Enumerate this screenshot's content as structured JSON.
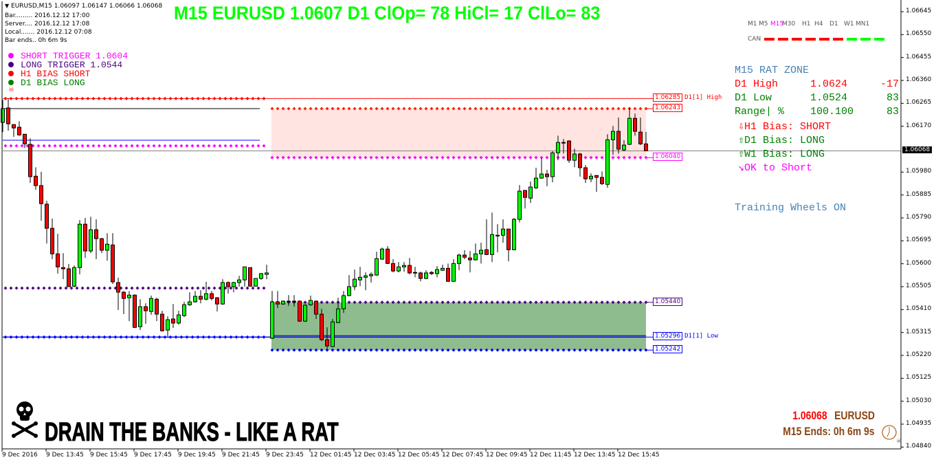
{
  "header": {
    "symbol_line": "EURUSD,M15  1.06097 1.06147 1.06066 1.06068",
    "info_lines": [
      "Bar......... 2016.12.12 17:00",
      "Server.... 2016.12.12 17:08",
      "Local....... 2016.12.12 07:08",
      "Bar ends.. 0h 6m 9s"
    ]
  },
  "title": "M15 EURUSD 1.0607 D1 ClOp= 78 HiCl= 17 ClLo= 83",
  "legend": [
    {
      "text": "SHORT TRIGGER 1.0604",
      "color": "#ff00ff"
    },
    {
      "text": "LONG TRIGGER  1.0544",
      "color": "#4b0082"
    },
    {
      "text": "H1 BIAS SHORT",
      "color": "#ff0000"
    },
    {
      "text": "D1 BIAS LONG",
      "color": "#008000"
    }
  ],
  "timeframes": {
    "items": [
      "M1",
      "M5",
      "M15",
      "M30",
      "H1",
      "H4",
      "D1",
      "W1",
      "MN1"
    ],
    "active": "M15",
    "can_label": "CAN",
    "can_colors": [
      "#ff0000",
      "#ff0000",
      "#ff0000",
      "#ff0000",
      "#ff0000",
      "#ff0000",
      "#00ff00",
      "#00ff00",
      "#00ff00"
    ]
  },
  "panel": {
    "title": "M15 RAT ZONE",
    "rows": [
      {
        "label": "D1 High",
        "value": "1.0624",
        "num": "-17",
        "color": "#ff0000"
      },
      {
        "label": "D1 Low",
        "value": "1.0524",
        "num": "83",
        "color": "#008000"
      },
      {
        "label": "Range| %",
        "value": "100.100",
        "num": "83",
        "color": "#008000"
      }
    ],
    "bias": [
      {
        "icon": "arrow-down",
        "text": "H1 Bias: SHORT",
        "color": "#ff0000"
      },
      {
        "icon": "arrow-up",
        "text": "D1 Bias: LONG",
        "color": "#008000"
      },
      {
        "icon": "arrow-up",
        "text": "W1 Bias: LONG",
        "color": "#008000"
      },
      {
        "icon": "arrow-down-right",
        "text": "OK to Short",
        "color": "#ff00ff"
      }
    ],
    "training": "Training Wheels ON"
  },
  "price_labels": [
    {
      "text": "1.06285",
      "suffix": "D1[1] High",
      "color": "#ff0000",
      "price": 1.06285
    },
    {
      "text": "1.06243",
      "suffix": "",
      "color": "#ff0000",
      "price": 1.06243
    },
    {
      "text": "1.06040",
      "suffix": "",
      "color": "#ff00ff",
      "price": 1.0604
    },
    {
      "text": "1.05440",
      "suffix": "",
      "color": "#4b0082",
      "price": 1.0544
    },
    {
      "text": "1.05296",
      "suffix": "D1[1] Low",
      "color": "#0000ff",
      "price": 1.05296
    },
    {
      "text": "1.05242",
      "suffix": "",
      "color": "#0000ff",
      "price": 1.05242
    }
  ],
  "chart_data": {
    "type": "candlestick",
    "symbol": "EURUSD",
    "timeframe": "M15",
    "ylim": [
      1.0484,
      1.0669
    ],
    "y_ticks": [
      "1.06645",
      "1.06550",
      "1.06455",
      "1.06360",
      "1.06265",
      "1.06170",
      "1.05980",
      "1.05885",
      "1.05790",
      "1.05695",
      "1.05600",
      "1.05505",
      "1.05410",
      "1.05315",
      "1.05220",
      "1.05125",
      "1.05030",
      "1.04935",
      "1.04840"
    ],
    "current_price": "1.06068",
    "x_ticks": [
      "9 Dec 2016",
      "9 Dec 13:45",
      "9 Dec 15:45",
      "9 Dec 17:45",
      "9 Dec 19:45",
      "9 Dec 21:45",
      "9 Dec 23:45",
      "12 Dec 01:45",
      "12 Dec 03:45",
      "12 Dec 05:45",
      "12 Dec 07:45",
      "12 Dec 09:45",
      "12 Dec 11:45",
      "12 Dec 13:45",
      "12 Dec 15:45"
    ],
    "colors": {
      "up": "#00ff00",
      "down": "#ff0000",
      "short_zone": "#ffe4e1",
      "long_zone": "#8fbc8f"
    },
    "levels": {
      "d1_high": 1.06285,
      "short_zone_top": 1.06243,
      "short_trigger": 1.0604,
      "long_trigger": 1.0544,
      "d1_low": 1.05296,
      "long_zone_bottom": 1.05242,
      "prev_black": 1.06243,
      "prev_blue": 1.06112,
      "prev_magenta": 1.06089,
      "prev_purple": 1.05499,
      "prev_low": 1.05296
    },
    "ohlc": [
      [
        1.06186,
        1.0628,
        1.06146,
        1.06243
      ],
      [
        1.06246,
        1.06285,
        1.06152,
        1.0618
      ],
      [
        1.06177,
        1.06177,
        1.06126,
        1.06163
      ],
      [
        1.06166,
        1.06191,
        1.06131,
        1.06134
      ],
      [
        1.06137,
        1.06137,
        1.0608,
        1.06097
      ],
      [
        1.06095,
        1.0612,
        1.05935,
        1.05961
      ],
      [
        1.05963,
        1.06,
        1.05906,
        1.05924
      ],
      [
        1.05924,
        1.05981,
        1.05778,
        1.05849
      ],
      [
        1.05847,
        1.05861,
        1.05684,
        1.05747
      ],
      [
        1.05747,
        1.05787,
        1.05619,
        1.05641
      ],
      [
        1.05641,
        1.05724,
        1.05559,
        1.05587
      ],
      [
        1.05584,
        1.05644,
        1.05536,
        1.05579
      ],
      [
        1.05579,
        1.05599,
        1.05505,
        1.05505
      ],
      [
        1.05507,
        1.05593,
        1.05502,
        1.05584
      ],
      [
        1.05584,
        1.05781,
        1.05556,
        1.05764
      ],
      [
        1.05764,
        1.0579,
        1.05624,
        1.05653
      ],
      [
        1.05653,
        1.05795,
        1.05644,
        1.05741
      ],
      [
        1.05741,
        1.05784,
        1.05619,
        1.05704
      ],
      [
        1.05704,
        1.05707,
        1.05644,
        1.05656
      ],
      [
        1.05656,
        1.05727,
        1.05613,
        1.05681
      ],
      [
        1.05678,
        1.05727,
        1.05516,
        1.05525
      ],
      [
        1.05522,
        1.05542,
        1.05408,
        1.05482
      ],
      [
        1.05482,
        1.05487,
        1.05391,
        1.05456
      ],
      [
        1.05459,
        1.05487,
        1.05362,
        1.0547
      ],
      [
        1.0547,
        1.05473,
        1.05334,
        1.05336
      ],
      [
        1.05339,
        1.05453,
        1.05325,
        1.05422
      ],
      [
        1.05422,
        1.05436,
        1.05351,
        1.05405
      ],
      [
        1.05402,
        1.05468,
        1.05388,
        1.05456
      ],
      [
        1.05453,
        1.05459,
        1.05362,
        1.05391
      ],
      [
        1.05391,
        1.05405,
        1.05319,
        1.05322
      ],
      [
        1.05325,
        1.05382,
        1.05299,
        1.05368
      ],
      [
        1.05371,
        1.05433,
        1.05334,
        1.05354
      ],
      [
        1.05354,
        1.05405,
        1.05348,
        1.05388
      ],
      [
        1.05385,
        1.05442,
        1.05379,
        1.0543
      ],
      [
        1.0543,
        1.05482,
        1.05425,
        1.05442
      ],
      [
        1.05442,
        1.05487,
        1.05439,
        1.05465
      ],
      [
        1.05465,
        1.0549,
        1.05436,
        1.05453
      ],
      [
        1.05453,
        1.05525,
        1.05448,
        1.05476
      ],
      [
        1.05476,
        1.05487,
        1.05448,
        1.05456
      ],
      [
        1.05459,
        1.05462,
        1.05402,
        1.05433
      ],
      [
        1.05433,
        1.05536,
        1.0543,
        1.05522
      ],
      [
        1.05522,
        1.05527,
        1.05476,
        1.05505
      ],
      [
        1.05505,
        1.05525,
        1.05482,
        1.05522
      ],
      [
        1.05522,
        1.0555,
        1.05505,
        1.05533
      ],
      [
        1.05533,
        1.05587,
        1.05505,
        1.05587
      ],
      [
        1.05584,
        1.05584,
        1.05505,
        1.05507
      ],
      [
        1.05507,
        1.05539,
        1.05505,
        1.05539
      ],
      [
        1.05539,
        1.05562,
        1.05533,
        1.05559
      ],
      [
        1.05556,
        1.05596,
        1.05536,
        1.05562
      ],
      [
        1.05291,
        1.05487,
        1.05288,
        1.05442
      ],
      [
        1.05442,
        1.05487,
        1.05416,
        1.05433
      ],
      [
        1.05433,
        1.05448,
        1.0543,
        1.05445
      ],
      [
        1.05445,
        1.0547,
        1.05425,
        1.05445
      ],
      [
        1.05445,
        1.0547,
        1.05422,
        1.05445
      ],
      [
        1.05445,
        1.05448,
        1.05359,
        1.05362
      ],
      [
        1.05362,
        1.05433,
        1.05359,
        1.05428
      ],
      [
        1.0543,
        1.05468,
        1.05425,
        1.05448
      ],
      [
        1.05445,
        1.05448,
        1.05371,
        1.05391
      ],
      [
        1.05391,
        1.05413,
        1.05279,
        1.05285
      ],
      [
        1.05285,
        1.05336,
        1.05245,
        1.05259
      ],
      [
        1.05257,
        1.05371,
        1.05254,
        1.05359
      ],
      [
        1.05356,
        1.05459,
        1.05354,
        1.05413
      ],
      [
        1.05413,
        1.05487,
        1.05396,
        1.05468
      ],
      [
        1.05468,
        1.05553,
        1.05465,
        1.05505
      ],
      [
        1.05505,
        1.05576,
        1.0549,
        1.05536
      ],
      [
        1.05533,
        1.05587,
        1.05507,
        1.05544
      ],
      [
        1.05544,
        1.05564,
        1.0549,
        1.0555
      ],
      [
        1.0555,
        1.05564,
        1.05522,
        1.05556
      ],
      [
        1.05553,
        1.0565,
        1.0555,
        1.05621
      ],
      [
        1.05619,
        1.05667,
        1.05616,
        1.05661
      ],
      [
        1.05661,
        1.05673,
        1.05599,
        1.05601
      ],
      [
        1.05601,
        1.05619,
        1.05564,
        1.0557
      ],
      [
        1.0557,
        1.05607,
        1.05564,
        1.05587
      ],
      [
        1.05587,
        1.05607,
        1.05567,
        1.05593
      ],
      [
        1.05593,
        1.05624,
        1.05556,
        1.05562
      ],
      [
        1.05564,
        1.05587,
        1.05544,
        1.05562
      ],
      [
        1.05562,
        1.05567,
        1.05527,
        1.05539
      ],
      [
        1.05539,
        1.05573,
        1.05536,
        1.05562
      ],
      [
        1.05564,
        1.0557,
        1.05553,
        1.05559
      ],
      [
        1.05559,
        1.0559,
        1.05544,
        1.05576
      ],
      [
        1.05573,
        1.05596,
        1.0557,
        1.05581
      ],
      [
        1.05581,
        1.05601,
        1.05525,
        1.05527
      ],
      [
        1.05527,
        1.05619,
        1.05525,
        1.05601
      ],
      [
        1.05601,
        1.05641,
        1.05573,
        1.05636
      ],
      [
        1.05636,
        1.05656,
        1.05619,
        1.05627
      ],
      [
        1.05624,
        1.05653,
        1.05564,
        1.05616
      ],
      [
        1.05616,
        1.05684,
        1.05613,
        1.05641
      ],
      [
        1.05641,
        1.05687,
        1.05601,
        1.05656
      ],
      [
        1.05658,
        1.05784,
        1.05636,
        1.05638
      ],
      [
        1.05638,
        1.05812,
        1.05607,
        1.05721
      ],
      [
        1.05718,
        1.05764,
        1.05647,
        1.05718
      ],
      [
        1.05718,
        1.05784,
        1.05687,
        1.05744
      ],
      [
        1.05744,
        1.05744,
        1.0561,
        1.05658
      ],
      [
        1.05658,
        1.0579,
        1.05656,
        1.05784
      ],
      [
        1.05784,
        1.05926,
        1.05772,
        1.05901
      ],
      [
        1.05904,
        1.05906,
        1.05829,
        1.05875
      ],
      [
        1.05872,
        1.05941,
        1.05852,
        1.05918
      ],
      [
        1.05915,
        1.05998,
        1.05909,
        1.05955
      ],
      [
        1.05955,
        1.06038,
        1.05952,
        1.05972
      ],
      [
        1.05972,
        1.05989,
        1.05921,
        1.05961
      ],
      [
        1.05961,
        1.06066,
        1.05938,
        1.0606
      ],
      [
        1.0606,
        1.06131,
        1.06029,
        1.06103
      ],
      [
        1.06103,
        1.06117,
        1.06057,
        1.06103
      ],
      [
        1.06109,
        1.06112,
        1.06018,
        1.06029
      ],
      [
        1.06029,
        1.06077,
        1.06,
        1.06055
      ],
      [
        1.06055,
        1.0606,
        1.05961,
        1.05998
      ],
      [
        1.05998,
        1.06009,
        1.05935,
        1.05952
      ],
      [
        1.05952,
        1.05975,
        1.05938,
        1.05963
      ],
      [
        1.05966,
        1.05966,
        1.05898,
        1.05958
      ],
      [
        1.05958,
        1.05983,
        1.05926,
        1.05932
      ],
      [
        1.05929,
        1.06137,
        1.05915,
        1.06114
      ],
      [
        1.06114,
        1.06171,
        1.06052,
        1.06149
      ],
      [
        1.06149,
        1.06206,
        1.06057,
        1.06075
      ],
      [
        1.06072,
        1.06112,
        1.06066,
        1.06092
      ],
      [
        1.06095,
        1.06248,
        1.06092,
        1.06203
      ],
      [
        1.06203,
        1.06223,
        1.06131,
        1.06149
      ],
      [
        1.06146,
        1.06206,
        1.06092,
        1.06097
      ],
      [
        1.06097,
        1.06147,
        1.06066,
        1.06068
      ]
    ]
  },
  "logo": {
    "text": "DRAIN THE BANKS - LIKE A RAT",
    "icon": "skull-crossbones-icon"
  },
  "footer": {
    "price": "1.06068",
    "symbol": "EURUSD",
    "ends": "M15 Ends: 0h 6m 9s",
    "icon": "clock-icon"
  }
}
